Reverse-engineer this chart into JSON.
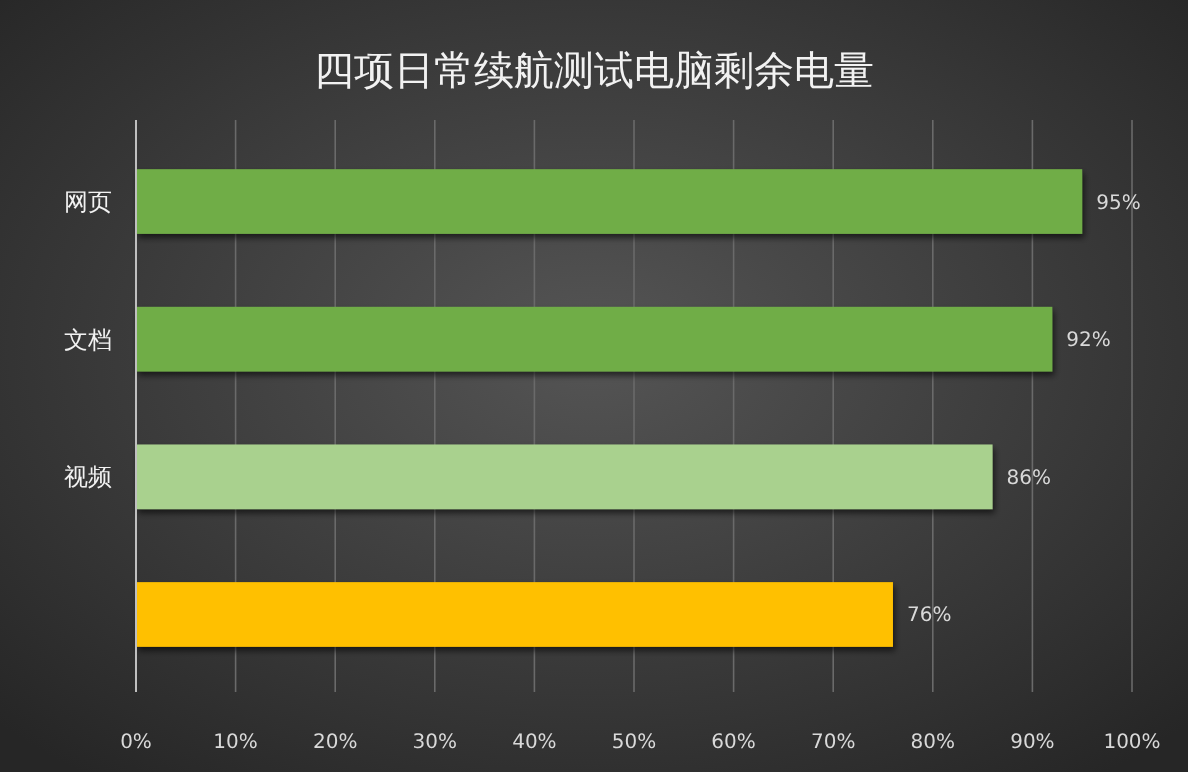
{
  "chart_data": {
    "type": "bar",
    "orientation": "horizontal",
    "title": "四项日常续航测试电脑剩余电量",
    "categories": [
      "网页",
      "文档",
      "视频",
      null
    ],
    "values": [
      95,
      92,
      86,
      76
    ],
    "colors": [
      "#70ad47",
      "#70ad47",
      "#a9d18e",
      "#ffc000"
    ],
    "value_labels": [
      "95%",
      "92%",
      "86%",
      "76%"
    ],
    "xlim": [
      0,
      100
    ],
    "xticks": [
      {
        "value": 0,
        "label": "0%"
      },
      {
        "value": 10,
        "label": "10%"
      },
      {
        "value": 20,
        "label": "20%"
      },
      {
        "value": 30,
        "label": "30%"
      },
      {
        "value": 40,
        "label": "40%"
      },
      {
        "value": 50,
        "label": "50%"
      },
      {
        "value": 60,
        "label": "60%"
      },
      {
        "value": 70,
        "label": "70%"
      },
      {
        "value": 80,
        "label": "80%"
      },
      {
        "value": 90,
        "label": "90%"
      },
      {
        "value": 100,
        "label": "100%"
      }
    ],
    "grid": "x"
  }
}
